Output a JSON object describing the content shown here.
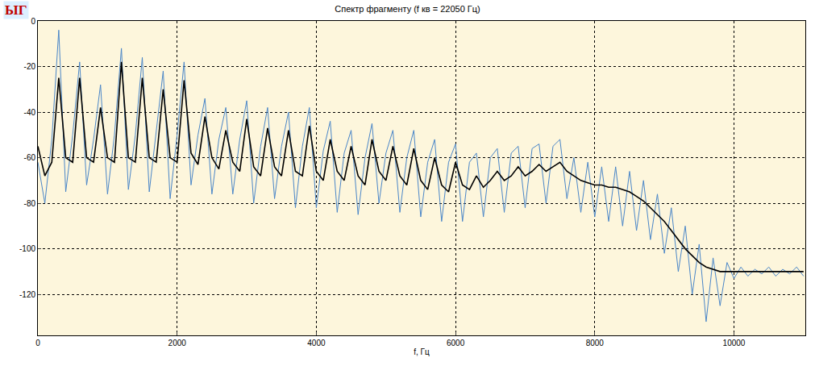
{
  "chart_data": {
    "type": "line",
    "title": "Спектр фрагменту (f кв = 22050 Гц)",
    "x_label": "f, Гц",
    "annotations": [
      "ЫГ"
    ],
    "xlim": [
      0,
      11025
    ],
    "xticks": [
      0,
      2000,
      4000,
      6000,
      8000,
      10000
    ],
    "ylim": [
      -138,
      0
    ],
    "yticks": [
      0,
      -20,
      -40,
      -60,
      -80,
      -100,
      -120
    ],
    "grid": true,
    "x": [
      0,
      100,
      200,
      300,
      400,
      500,
      600,
      700,
      800,
      900,
      1000,
      1100,
      1200,
      1300,
      1400,
      1500,
      1600,
      1700,
      1800,
      1900,
      2000,
      2100,
      2200,
      2300,
      2400,
      2500,
      2600,
      2700,
      2800,
      2900,
      3000,
      3100,
      3200,
      3300,
      3400,
      3500,
      3600,
      3700,
      3800,
      3900,
      4000,
      4100,
      4200,
      4300,
      4400,
      4500,
      4600,
      4700,
      4800,
      4900,
      5000,
      5100,
      5200,
      5300,
      5400,
      5500,
      5600,
      5700,
      5800,
      5900,
      6000,
      6100,
      6200,
      6300,
      6400,
      6500,
      6600,
      6700,
      6800,
      6900,
      7000,
      7100,
      7200,
      7300,
      7400,
      7500,
      7600,
      7700,
      7800,
      7900,
      8000,
      8100,
      8200,
      8300,
      8400,
      8500,
      8600,
      8700,
      8800,
      8900,
      9000,
      9100,
      9200,
      9300,
      9400,
      9500,
      9600,
      9700,
      9800,
      9900,
      10000,
      10100,
      10200,
      10300,
      10400,
      10500,
      10600,
      10700,
      10800,
      10900,
      11000
    ],
    "series": [
      {
        "color": "#4a86c8",
        "values": [
          -62,
          -80,
          -52,
          -4,
          -75,
          -50,
          -18,
          -72,
          -52,
          -28,
          -76,
          -50,
          -12,
          -74,
          -50,
          -16,
          -75,
          -48,
          -22,
          -78,
          -50,
          -18,
          -72,
          -50,
          -34,
          -76,
          -52,
          -38,
          -76,
          -52,
          -35,
          -80,
          -55,
          -38,
          -78,
          -55,
          -40,
          -82,
          -55,
          -38,
          -82,
          -57,
          -44,
          -84,
          -58,
          -48,
          -85,
          -60,
          -45,
          -80,
          -58,
          -48,
          -84,
          -60,
          -48,
          -86,
          -62,
          -52,
          -88,
          -62,
          -54,
          -88,
          -62,
          -58,
          -86,
          -60,
          -56,
          -84,
          -58,
          -55,
          -82,
          -56,
          -54,
          -80,
          -55,
          -52,
          -78,
          -60,
          -84,
          -62,
          -86,
          -64,
          -88,
          -64,
          -90,
          -66,
          -92,
          -70,
          -96,
          -76,
          -102,
          -82,
          -110,
          -90,
          -120,
          -98,
          -132,
          -104,
          -125,
          -106,
          -113,
          -108,
          -112,
          -109,
          -111,
          -108,
          -112,
          -109,
          -111,
          -108,
          -112
        ]
      },
      {
        "color": "#000000",
        "values": [
          -55,
          -68,
          -62,
          -25,
          -60,
          -62,
          -25,
          -60,
          -62,
          -38,
          -60,
          -62,
          -18,
          -60,
          -62,
          -25,
          -60,
          -62,
          -30,
          -60,
          -62,
          -26,
          -58,
          -63,
          -42,
          -60,
          -65,
          -48,
          -62,
          -66,
          -43,
          -64,
          -68,
          -47,
          -64,
          -68,
          -48,
          -66,
          -68,
          -46,
          -66,
          -70,
          -52,
          -66,
          -70,
          -55,
          -68,
          -72,
          -52,
          -66,
          -70,
          -55,
          -68,
          -72,
          -56,
          -70,
          -74,
          -60,
          -72,
          -75,
          -62,
          -72,
          -74,
          -68,
          -73,
          -70,
          -66,
          -70,
          -68,
          -64,
          -68,
          -66,
          -63,
          -66,
          -64,
          -62,
          -66,
          -68,
          -70,
          -71,
          -72,
          -72,
          -73,
          -73,
          -74,
          -75,
          -77,
          -79,
          -82,
          -85,
          -88,
          -92,
          -96,
          -100,
          -103,
          -106,
          -108,
          -109,
          -110,
          -110,
          -110,
          -110,
          -110,
          -110,
          -110,
          -110,
          -110,
          -110,
          -110,
          -110,
          -110
        ]
      }
    ]
  }
}
